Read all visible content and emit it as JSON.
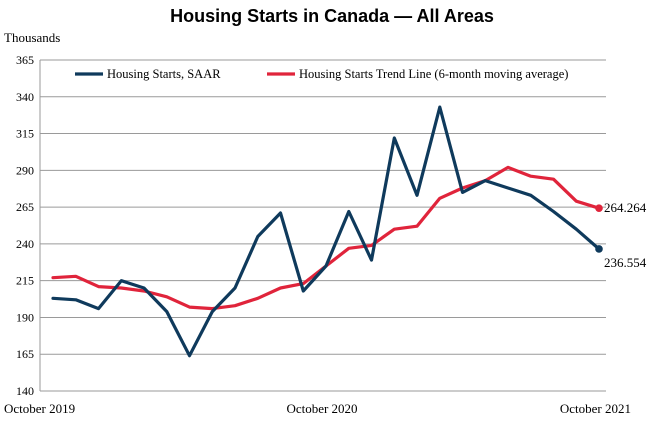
{
  "chart_data": {
    "type": "line",
    "title": "Housing Starts in Canada — All Areas",
    "ylabel": "Thousands",
    "xlabel": "",
    "ylim": [
      140,
      365
    ],
    "yticks": [
      140,
      165,
      190,
      215,
      240,
      265,
      290,
      315,
      340,
      365
    ],
    "x_tick_labels": [
      "October 2019",
      "October 2020",
      "October 2021"
    ],
    "grid": "horizontal",
    "legend_position": "top",
    "x": [
      "Oct 2019",
      "Nov 2019",
      "Dec 2019",
      "Jan 2020",
      "Feb 2020",
      "Mar 2020",
      "Apr 2020",
      "May 2020",
      "Jun 2020",
      "Jul 2020",
      "Aug 2020",
      "Sep 2020",
      "Oct 2020",
      "Nov 2020",
      "Dec 2020",
      "Jan 2021",
      "Feb 2021",
      "Mar 2021",
      "Apr 2021",
      "May 2021",
      "Jun 2021",
      "Jul 2021",
      "Aug 2021",
      "Sep 2021",
      "Oct 2021"
    ],
    "series": [
      {
        "name": "Housing Starts, SAAR",
        "color": "#0f3a5c",
        "values": [
          203,
          202,
          196,
          215,
          210,
          194,
          164,
          194,
          210,
          245,
          261,
          208,
          225,
          262,
          229,
          312,
          273,
          333,
          275,
          283,
          278,
          273,
          262,
          250,
          236.554
        ],
        "end_label": "236.554"
      },
      {
        "name": "Housing Starts Trend Line (6-month moving average)",
        "color": "#e0243b",
        "values": [
          217,
          218,
          211,
          210,
          208,
          204,
          197,
          196,
          198,
          203,
          210,
          213,
          225,
          237,
          239,
          250,
          252,
          271,
          278,
          283,
          292,
          286,
          284,
          269,
          264.264
        ],
        "end_label": "264.264"
      }
    ]
  }
}
